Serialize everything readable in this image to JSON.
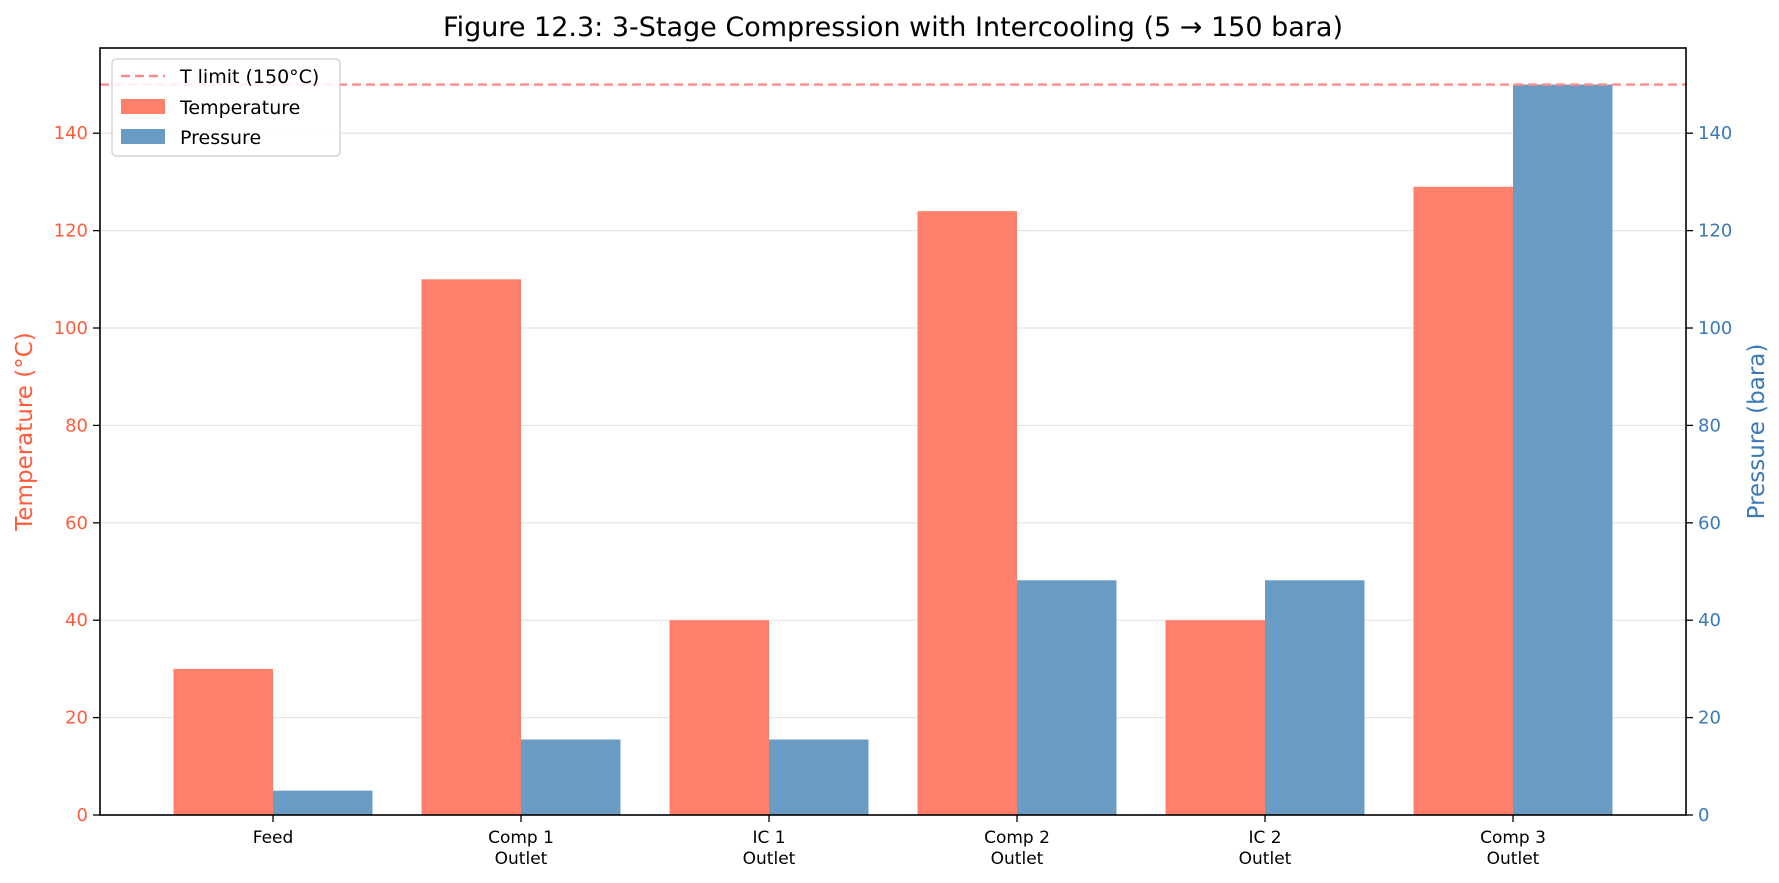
{
  "chart_data": {
    "type": "bar",
    "title": "Figure 12.3: 3-Stage Compression with Intercooling (5 → 150 bara)",
    "categories": [
      [
        "Feed"
      ],
      [
        "Comp 1",
        "Outlet"
      ],
      [
        "IC 1",
        "Outlet"
      ],
      [
        "Comp 2",
        "Outlet"
      ],
      [
        "IC 2",
        "Outlet"
      ],
      [
        "Comp 3",
        "Outlet"
      ]
    ],
    "series": [
      {
        "name": "Temperature",
        "axis": "left",
        "color": "#ff7f6b",
        "values": [
          30,
          110,
          40,
          124,
          40,
          129
        ]
      },
      {
        "name": "Pressure",
        "axis": "right",
        "color": "#6a9bc3",
        "values": [
          5,
          15.5,
          15.5,
          48.2,
          48.2,
          150
        ]
      }
    ],
    "reference_line": {
      "label": "T limit (150°C)",
      "value": 150,
      "axis": "left",
      "color": "#ff8c8c",
      "style": "dashed"
    },
    "ylabel": "Temperature (°C)",
    "ylabel_color": "#ff5c3c",
    "y2label": "Pressure (bara)",
    "y2label_color": "#3a7ab8",
    "ylim": [
      0,
      157.5
    ],
    "y2lim": [
      0,
      157.5
    ],
    "yticks": [
      0,
      20,
      40,
      60,
      80,
      100,
      120,
      140
    ],
    "y2ticks": [
      0,
      20,
      40,
      60,
      80,
      100,
      120,
      140
    ],
    "grid": "horizontal",
    "legend_position": "top-left"
  }
}
